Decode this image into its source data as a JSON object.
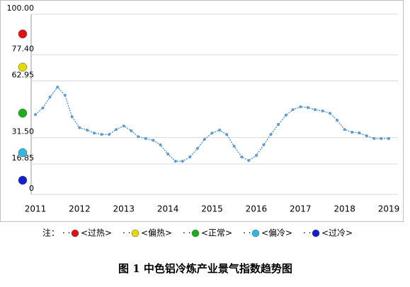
{
  "chart_data": {
    "type": "line",
    "caption": "图 1 中色铝冷炼产业景气指数趋势图",
    "legend_title": "注：",
    "legend": [
      {
        "name": "<过热>",
        "color": "#e01010"
      },
      {
        "name": "<偏热>",
        "color": "#e6d800"
      },
      {
        "name": "<正常>",
        "color": "#18b018"
      },
      {
        "name": "<偏冷>",
        "color": "#30b8e0"
      },
      {
        "name": "<过冷>",
        "color": "#1020d0"
      }
    ],
    "x": [
      2011,
      2011.17,
      2011.33,
      2011.5,
      2011.67,
      2011.83,
      2012,
      2012.17,
      2012.33,
      2012.5,
      2012.67,
      2012.83,
      2013,
      2013.17,
      2013.33,
      2013.5,
      2013.67,
      2013.83,
      2014,
      2014.17,
      2014.33,
      2014.5,
      2014.67,
      2014.83,
      2015,
      2015.17,
      2015.33,
      2015.5,
      2015.67,
      2015.83,
      2016,
      2016.17,
      2016.33,
      2016.5,
      2016.67,
      2016.83,
      2017,
      2017.17,
      2017.33,
      2017.5,
      2017.67,
      2017.83,
      2018,
      2018.17,
      2018.33,
      2018.5,
      2018.67,
      2018.83,
      2019
    ],
    "series": [
      {
        "name": "景气指数",
        "color": "#5b9bd5",
        "values": [
          44.3,
          48,
          54,
          59.5,
          55,
          43,
          37,
          35.7,
          34,
          33.3,
          33.3,
          36,
          38,
          35.3,
          32,
          31,
          30,
          27.5,
          22.4,
          18.4,
          18.4,
          20.8,
          25.5,
          30.6,
          34,
          35.7,
          33.3,
          26.7,
          20.8,
          18.8,
          21.6,
          27.5,
          33.3,
          38.8,
          43.9,
          47,
          48.6,
          48.2,
          47,
          46.3,
          45,
          41.2,
          36,
          34.5,
          34.1,
          32.5,
          31,
          31,
          31
        ]
      }
    ],
    "xlim": [
      2011,
      2019
    ],
    "xticks": [
      2011,
      2012,
      2013,
      2014,
      2015,
      2016,
      2017,
      2018,
      2019
    ],
    "ylim": [
      0,
      100
    ],
    "yticks": [
      0,
      16.85,
      {
        "value": 31.5,
        "label": "31.50"
      },
      62.95,
      {
        "value": 77.4,
        "label": "77.40"
      },
      {
        "value": 100,
        "label": "100.00"
      }
    ],
    "grid": true
  }
}
